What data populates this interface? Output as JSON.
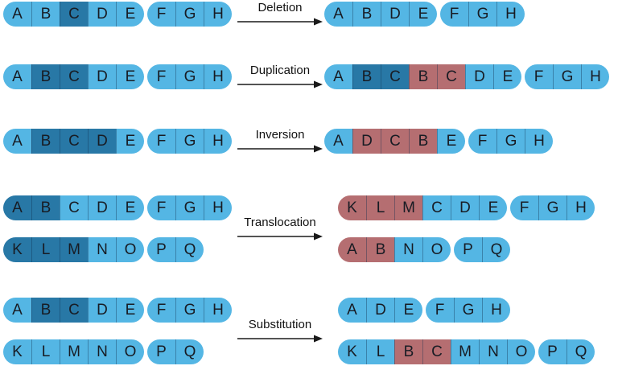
{
  "palette": {
    "light_blue": "#54b6e4",
    "dark_blue": "#2878a6",
    "red": "#b56e71",
    "letter_text": "#181c24",
    "label_text": "#111111",
    "arrow": "#1a1a1a",
    "background": "#ffffff"
  },
  "rows": [
    {
      "label": "Deletion",
      "before": [
        {
          "groups": [
            [
              "A:l",
              "B:l",
              "C:d",
              "D:l",
              "E:l"
            ],
            [
              "F:l",
              "G:l",
              "H:l"
            ]
          ]
        }
      ],
      "after": [
        {
          "groups": [
            [
              "A:l",
              "B:l",
              "D:l",
              "E:l"
            ],
            [
              "F:l",
              "G:l",
              "H:l"
            ]
          ]
        }
      ]
    },
    {
      "label": "Duplication",
      "before": [
        {
          "groups": [
            [
              "A:l",
              "B:d",
              "C:d",
              "D:l",
              "E:l"
            ],
            [
              "F:l",
              "G:l",
              "H:l"
            ]
          ]
        }
      ],
      "after": [
        {
          "groups": [
            [
              "A:l",
              "B:d",
              "C:d",
              "B:r",
              "C:r",
              "D:l",
              "E:l"
            ],
            [
              "F:l",
              "G:l",
              "H:l"
            ]
          ]
        }
      ]
    },
    {
      "label": "Inversion",
      "before": [
        {
          "groups": [
            [
              "A:l",
              "B:d",
              "C:d",
              "D:d",
              "E:l"
            ],
            [
              "F:l",
              "G:l",
              "H:l"
            ]
          ]
        }
      ],
      "after": [
        {
          "groups": [
            [
              "A:l",
              "D:r",
              "C:r",
              "B:r",
              "E:l"
            ],
            [
              "F:l",
              "G:l",
              "H:l"
            ]
          ]
        }
      ]
    },
    {
      "label": "Translocation",
      "before": [
        {
          "groups": [
            [
              "A:d",
              "B:d",
              "C:l",
              "D:l",
              "E:l"
            ],
            [
              "F:l",
              "G:l",
              "H:l"
            ]
          ]
        },
        {
          "groups": [
            [
              "K:d",
              "L:d",
              "M:d",
              "N:l",
              "O:l"
            ],
            [
              "P:l",
              "Q:l"
            ]
          ]
        }
      ],
      "after": [
        {
          "groups": [
            [
              "K:r",
              "L:r",
              "M:r",
              "C:l",
              "D:l",
              "E:l"
            ],
            [
              "F:l",
              "G:l",
              "H:l"
            ]
          ]
        },
        {
          "groups": [
            [
              "A:r",
              "B:r",
              "N:l",
              "O:l"
            ],
            [
              "P:l",
              "Q:l"
            ]
          ]
        }
      ]
    },
    {
      "label": "Substitution",
      "before": [
        {
          "groups": [
            [
              "A:l",
              "B:d",
              "C:d",
              "D:l",
              "E:l"
            ],
            [
              "F:l",
              "G:l",
              "H:l"
            ]
          ]
        },
        {
          "groups": [
            [
              "K:l",
              "L:l",
              "M:l",
              "N:l",
              "O:l"
            ],
            [
              "P:l",
              "Q:l"
            ]
          ]
        }
      ],
      "after": [
        {
          "groups": [
            [
              "A:l",
              "D:l",
              "E:l"
            ],
            [
              "F:l",
              "G:l",
              "H:l"
            ]
          ]
        },
        {
          "groups": [
            [
              "K:l",
              "L:l",
              "B:r",
              "C:r",
              "M:l",
              "N:l",
              "O:l"
            ],
            [
              "P:l",
              "Q:l"
            ]
          ]
        }
      ]
    }
  ]
}
